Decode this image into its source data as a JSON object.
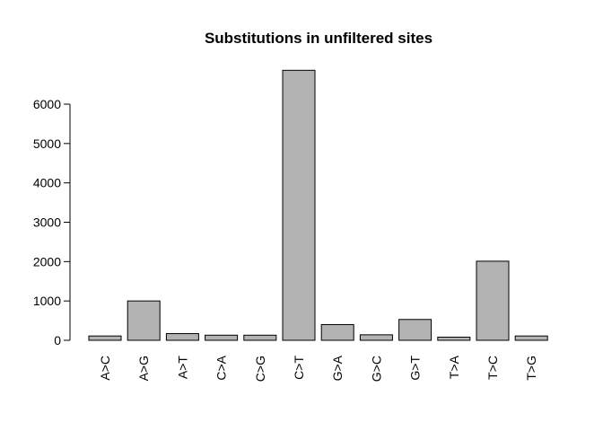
{
  "chart_data": {
    "type": "bar",
    "title": "Substitutions in unfiltered sites",
    "xlabel": "",
    "ylabel": "",
    "categories": [
      "A>C",
      "A>G",
      "A>T",
      "C>A",
      "C>G",
      "C>T",
      "G>A",
      "G>C",
      "G>T",
      "T>A",
      "T>C",
      "T>G"
    ],
    "values": [
      110,
      1000,
      170,
      130,
      130,
      6860,
      400,
      140,
      530,
      80,
      2010,
      110
    ],
    "y_ticks": [
      0,
      1000,
      2000,
      3000,
      4000,
      5000,
      6000
    ],
    "ylim": [
      0,
      6860
    ],
    "bar_color": "#b3b3b3",
    "grid": false,
    "legend": "none"
  }
}
